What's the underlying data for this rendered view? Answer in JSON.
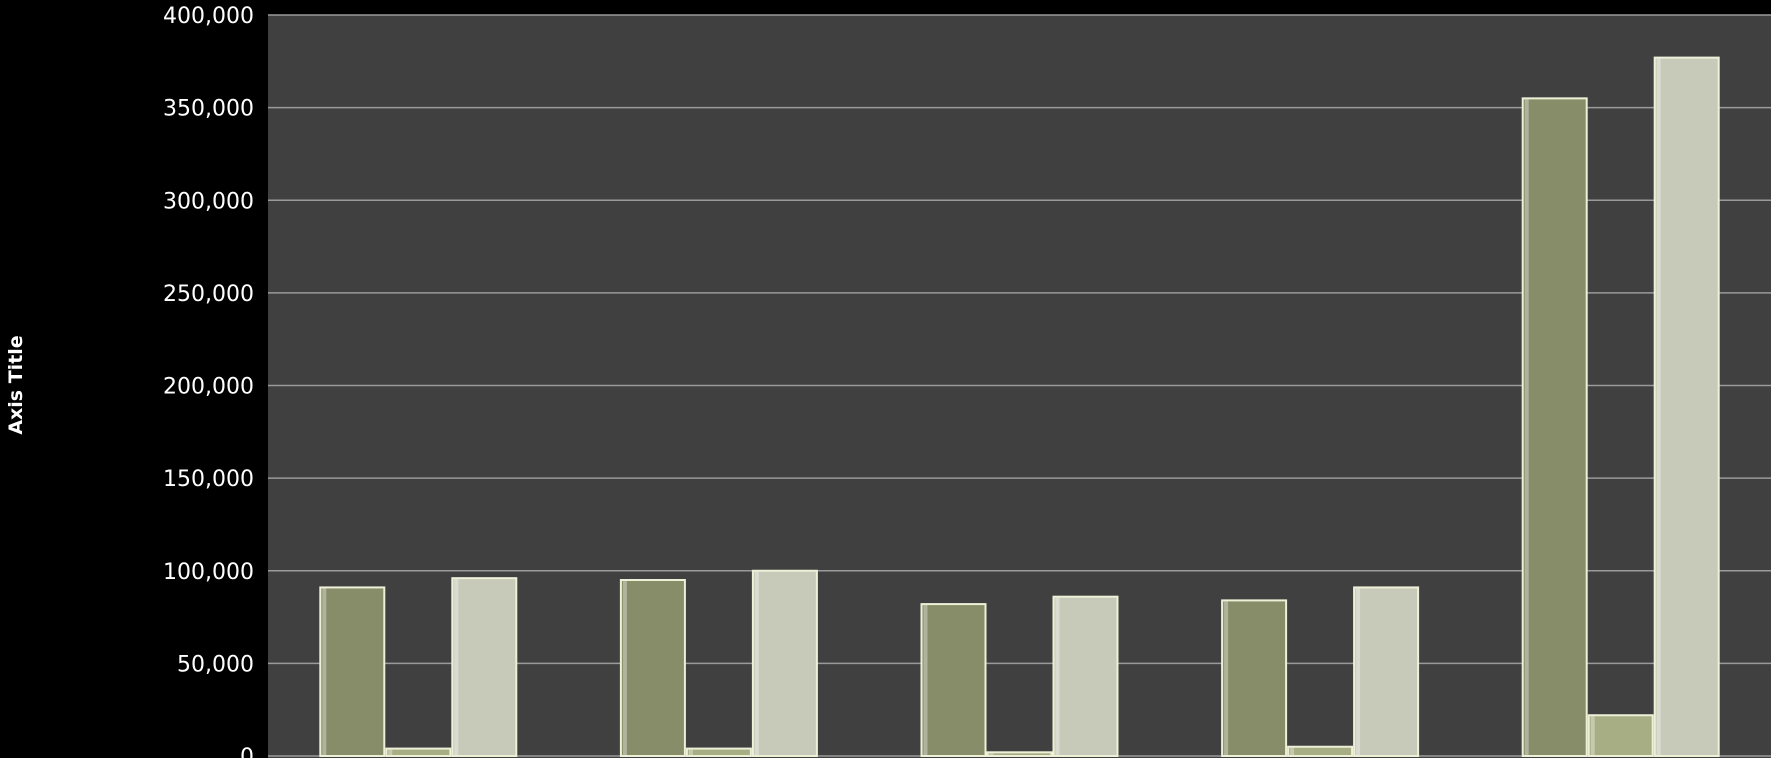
{
  "chart_data": {
    "type": "bar",
    "ylabel": "Axis Title",
    "ylim": [
      0,
      400000
    ],
    "y_ticks": [
      "0",
      "50,000",
      "100,000",
      "150,000",
      "200,000",
      "250,000",
      "300,000",
      "350,000",
      "400,000"
    ],
    "grid": true,
    "groups": 5,
    "series": [
      {
        "color": "#868d68",
        "values": [
          91000,
          95000,
          82000,
          84000,
          355000
        ]
      },
      {
        "color": "#a7ae84",
        "values": [
          4000,
          4000,
          2000,
          5000,
          22000
        ]
      },
      {
        "color": "#c7cab8",
        "values": [
          96000,
          100000,
          86000,
          91000,
          377000
        ]
      }
    ],
    "colors": {
      "page_bg": "#000000",
      "plot_bg": "#404040",
      "grid": "#9a9a9a",
      "text": "#ffffff"
    }
  }
}
